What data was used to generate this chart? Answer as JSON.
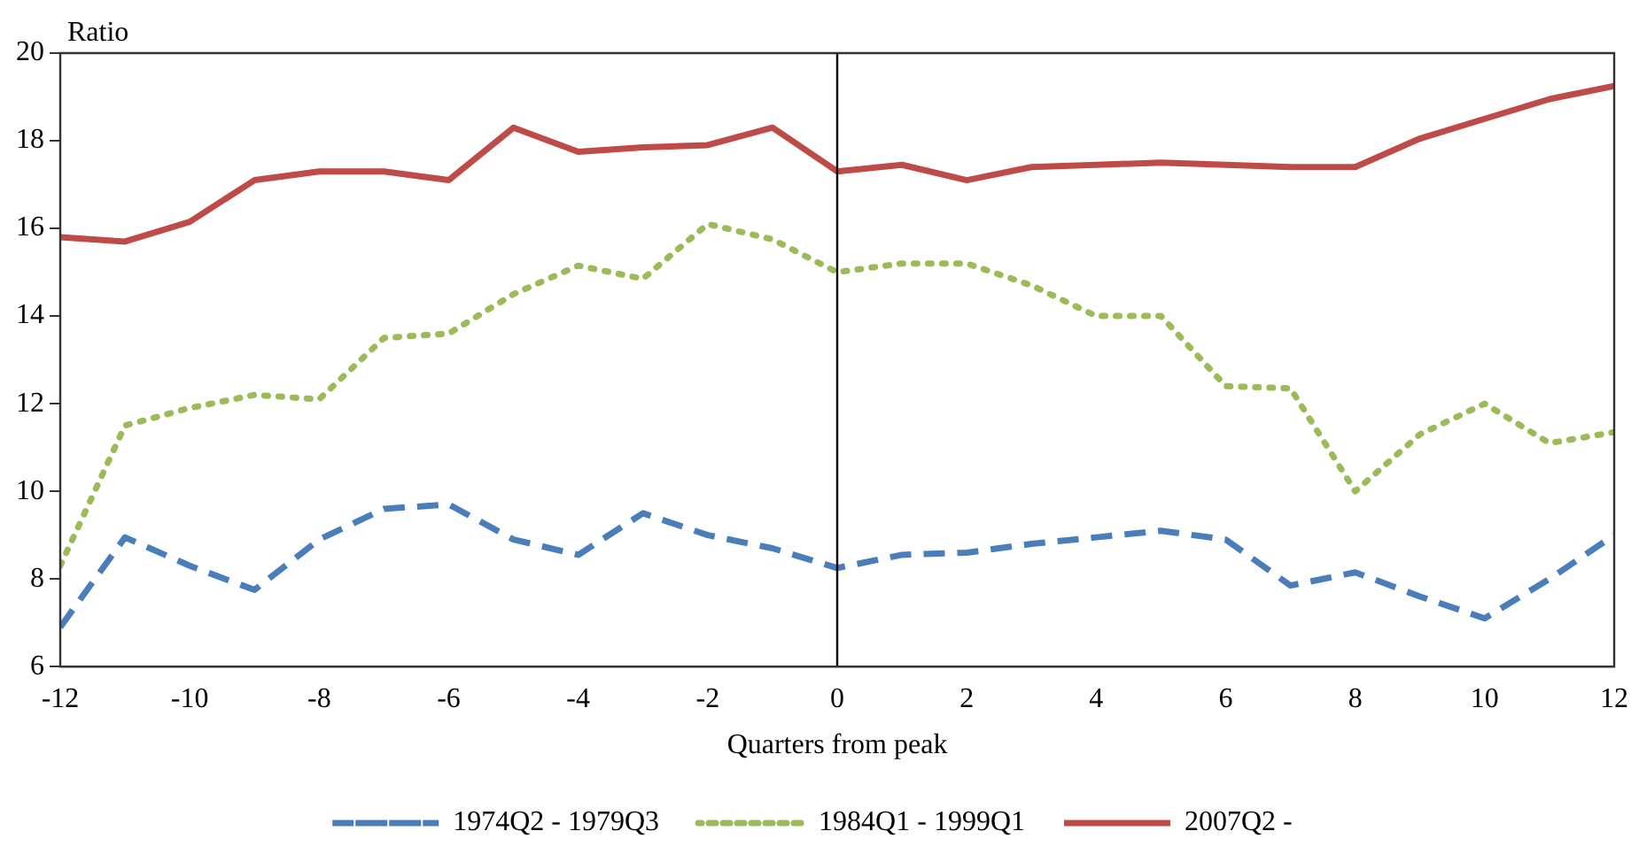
{
  "chart_data": {
    "type": "line",
    "xlabel": "Quarters from peak",
    "ylabel": "Ratio",
    "x": [
      -12,
      -11,
      -10,
      -9,
      -8,
      -7,
      -6,
      -5,
      -4,
      -3,
      -2,
      -1,
      0,
      1,
      2,
      3,
      4,
      5,
      6,
      7,
      8,
      9,
      10,
      11,
      12
    ],
    "xlim": [
      -12,
      12
    ],
    "xticks": [
      -12,
      -10,
      -8,
      -6,
      -4,
      -2,
      0,
      2,
      4,
      6,
      8,
      10,
      12
    ],
    "ylim": [
      6,
      20
    ],
    "yticks": [
      6,
      8,
      10,
      12,
      14,
      16,
      18,
      20
    ],
    "grid": false,
    "legend": "bottom",
    "marker": "none",
    "ref_lines": [
      {
        "axis": "x",
        "value": 0,
        "color": "#000000"
      }
    ],
    "series": [
      {
        "name": "1974Q2 - 1979Q3",
        "color": "#4a7ebb",
        "line_style": "dashed",
        "values": [
          6.9,
          8.95,
          8.3,
          7.75,
          8.9,
          9.6,
          9.7,
          8.9,
          8.55,
          9.5,
          9.0,
          8.7,
          8.25,
          8.55,
          8.6,
          8.8,
          8.95,
          9.1,
          8.9,
          7.85,
          8.15,
          7.6,
          7.1,
          8.0,
          9.0
        ]
      },
      {
        "name": "1984Q1 - 1999Q1",
        "color": "#9bbb59",
        "line_style": "dotted",
        "values": [
          8.3,
          11.5,
          11.9,
          12.2,
          12.1,
          13.5,
          13.6,
          14.5,
          15.15,
          14.85,
          16.1,
          15.75,
          15.0,
          15.2,
          15.2,
          14.7,
          14.0,
          14.0,
          12.4,
          12.35,
          10.0,
          11.3,
          12.0,
          11.1,
          11.35
        ]
      },
      {
        "name": "2007Q2 -",
        "color": "#be4b48",
        "line_style": "solid",
        "values": [
          15.8,
          15.7,
          16.15,
          17.1,
          17.3,
          17.3,
          17.1,
          18.3,
          17.75,
          17.85,
          17.9,
          18.3,
          17.3,
          17.45,
          17.1,
          17.4,
          17.45,
          17.5,
          17.45,
          17.4,
          17.4,
          18.05,
          18.5,
          18.95,
          19.25
        ]
      }
    ]
  }
}
